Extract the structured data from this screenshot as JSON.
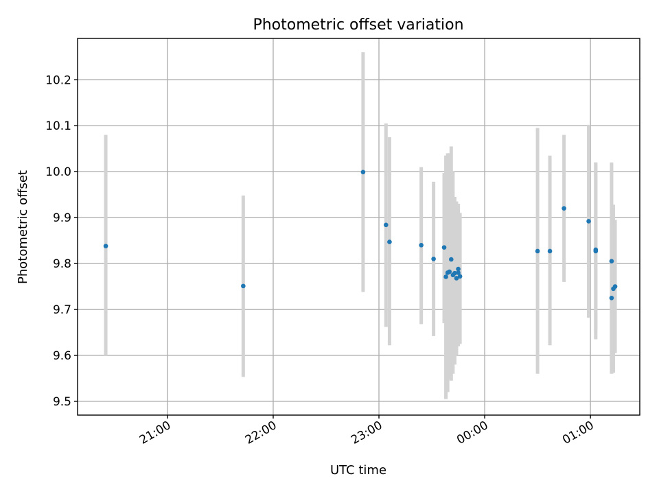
{
  "chart_data": {
    "type": "scatter",
    "title": "Photometric offset variation",
    "xlabel": "UTC time",
    "ylabel": "Photometric offset",
    "x_axis": {
      "kind": "time",
      "range": [
        "20:09",
        "01:28"
      ],
      "ticks": [
        "21:00",
        "22:00",
        "23:00",
        "00:00",
        "01:00"
      ]
    },
    "y_axis": {
      "range": [
        9.47,
        10.29
      ],
      "ticks": [
        "9.5",
        "9.6",
        "9.7",
        "9.8",
        "9.9",
        "10.0",
        "10.1",
        "10.2"
      ]
    },
    "grid": true,
    "colors": {
      "point": "#1f77b4",
      "error_bar": "#d3d3d3"
    },
    "points": [
      {
        "t": "20:25",
        "y": 9.838,
        "lo": 9.6,
        "hi": 10.08
      },
      {
        "t": "21:43",
        "y": 9.751,
        "lo": 9.553,
        "hi": 9.948
      },
      {
        "t": "22:51",
        "y": 9.999,
        "lo": 9.738,
        "hi": 10.26
      },
      {
        "t": "23:04",
        "y": 9.884,
        "lo": 9.662,
        "hi": 10.105
      },
      {
        "t": "23:06",
        "y": 9.847,
        "lo": 9.622,
        "hi": 10.075
      },
      {
        "t": "23:24",
        "y": 9.84,
        "lo": 9.668,
        "hi": 10.01
      },
      {
        "t": "23:31",
        "y": 9.81,
        "lo": 9.642,
        "hi": 9.978
      },
      {
        "t": "23:37",
        "y": 9.835,
        "lo": 9.67,
        "hi": 9.997
      },
      {
        "t": "23:38",
        "y": 9.771,
        "lo": 9.505,
        "hi": 10.035
      },
      {
        "t": "23:39",
        "y": 9.78,
        "lo": 9.52,
        "hi": 10.04
      },
      {
        "t": "23:40",
        "y": 9.782,
        "lo": 9.55,
        "hi": 10.04
      },
      {
        "t": "23:41",
        "y": 9.809,
        "lo": 9.545,
        "hi": 10.055
      },
      {
        "t": "23:42",
        "y": 9.775,
        "lo": 9.56,
        "hi": 10.0
      },
      {
        "t": "23:43",
        "y": 9.779,
        "lo": 9.58,
        "hi": 9.945
      },
      {
        "t": "23:44",
        "y": 9.768,
        "lo": 9.6,
        "hi": 9.935
      },
      {
        "t": "23:45",
        "y": 9.78,
        "lo": 9.62,
        "hi": 9.93
      },
      {
        "t": "23:45",
        "y": 9.788,
        "lo": 9.64,
        "hi": 9.93
      },
      {
        "t": "23:46",
        "y": 9.772,
        "lo": 9.625,
        "hi": 9.91
      },
      {
        "t": "00:30",
        "y": 9.827,
        "lo": 9.56,
        "hi": 10.095
      },
      {
        "t": "00:37",
        "y": 9.827,
        "lo": 9.622,
        "hi": 10.035
      },
      {
        "t": "00:45",
        "y": 9.92,
        "lo": 9.76,
        "hi": 10.08
      },
      {
        "t": "00:59",
        "y": 9.892,
        "lo": 9.682,
        "hi": 10.102
      },
      {
        "t": "01:03",
        "y": 9.83,
        "lo": 9.655,
        "hi": 10.02
      },
      {
        "t": "01:03",
        "y": 9.827,
        "lo": 9.635,
        "hi": 10.02
      },
      {
        "t": "01:12",
        "y": 9.805,
        "lo": 9.59,
        "hi": 10.02
      },
      {
        "t": "01:12",
        "y": 9.725,
        "lo": 9.56,
        "hi": 9.89
      },
      {
        "t": "01:13",
        "y": 9.745,
        "lo": 9.562,
        "hi": 9.928
      },
      {
        "t": "01:14",
        "y": 9.75,
        "lo": 9.605,
        "hi": 9.895
      }
    ]
  }
}
